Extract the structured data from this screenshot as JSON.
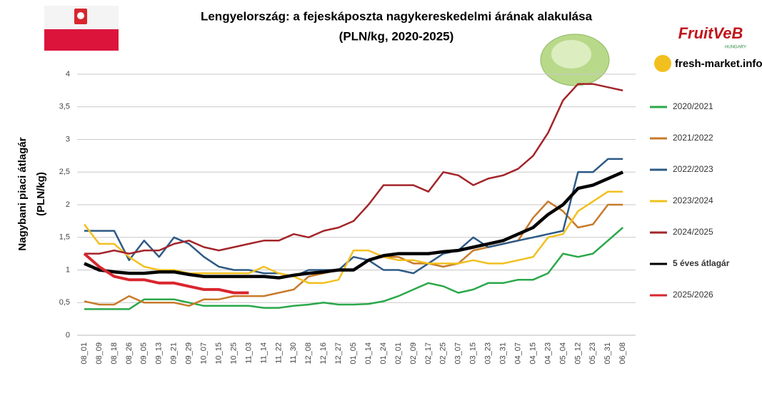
{
  "chart_data": {
    "type": "line",
    "title": "Lengyelország: a fejeskáposzta nagykereskedelmi árának alakulása",
    "subtitle": "(PLN/kg, 2020-2025)",
    "y_label": [
      "Nagybani piaci átlagár",
      "(PLN/kg)"
    ],
    "logos": {
      "fruitveb": "FruitVeB",
      "hungary": "HUNGARY",
      "freshmarket": "fresh-market.info"
    },
    "categories": [
      "08_01",
      "08_09",
      "08_18",
      "08_26",
      "09_05",
      "09_13",
      "09_21",
      "09_29",
      "10_07",
      "10_15",
      "10_25",
      "11_03",
      "11_14",
      "11_22",
      "11_30",
      "12_08",
      "12_16",
      "12_27",
      "01_05",
      "01_14",
      "01_24",
      "02_01",
      "02_09",
      "02_17",
      "02_25",
      "03_07",
      "03_15",
      "03_23",
      "03_31",
      "04_07",
      "04_15",
      "04_23",
      "05_04",
      "05_12",
      "05_23",
      "05_31",
      "06_08"
    ],
    "ylim": [
      0,
      4
    ],
    "yticks": [
      0,
      {
        "value": 0.5,
        "label": "0,5"
      },
      1,
      {
        "value": 1.5,
        "label": "1,5"
      },
      2,
      {
        "value": 2.5,
        "label": "2,5"
      },
      3,
      {
        "value": 3.5,
        "label": "3,5"
      },
      4
    ],
    "grid": true,
    "legend": "right",
    "series": [
      {
        "name": "2020/2021",
        "color": "#2aa84a",
        "width": 2.5,
        "values": [
          0.4,
          0.4,
          0.4,
          0.4,
          0.55,
          0.55,
          0.55,
          0.5,
          0.45,
          0.45,
          0.45,
          0.45,
          0.42,
          0.42,
          0.45,
          0.47,
          0.5,
          0.47,
          0.47,
          0.48,
          0.52,
          0.6,
          0.7,
          0.8,
          0.75,
          0.65,
          0.7,
          0.8,
          0.8,
          0.85,
          0.85,
          0.95,
          1.25,
          1.2,
          1.25,
          1.45,
          1.65
        ]
      },
      {
        "name": "2021/2022",
        "color": "#c87a2a",
        "width": 2.5,
        "values": [
          0.52,
          0.47,
          0.47,
          0.6,
          0.5,
          0.5,
          0.5,
          0.45,
          0.55,
          0.55,
          0.6,
          0.6,
          0.6,
          0.65,
          0.7,
          0.9,
          0.95,
          1.0,
          1.0,
          1.15,
          1.2,
          1.2,
          1.1,
          1.1,
          1.05,
          1.1,
          1.3,
          1.35,
          1.4,
          1.45,
          1.8,
          2.05,
          1.9,
          1.65,
          1.7,
          2.0,
          2.0
        ]
      },
      {
        "name": "2022/2023",
        "color": "#2e5a85",
        "width": 2.5,
        "values": [
          1.6,
          1.6,
          1.6,
          1.15,
          1.45,
          1.2,
          1.5,
          1.4,
          1.2,
          1.05,
          1.0,
          1.0,
          0.95,
          0.95,
          0.9,
          1.0,
          1.0,
          1.0,
          1.2,
          1.15,
          1.0,
          1.0,
          0.95,
          1.1,
          1.25,
          1.3,
          1.5,
          1.35,
          1.4,
          1.45,
          1.5,
          1.55,
          1.6,
          2.5,
          2.5,
          2.7,
          2.7
        ]
      },
      {
        "name": "2023/2024",
        "color": "#f2c01e",
        "width": 2.5,
        "values": [
          1.7,
          1.4,
          1.4,
          1.2,
          1.05,
          1.0,
          1.0,
          0.95,
          0.95,
          0.95,
          0.95,
          0.95,
          1.05,
          0.95,
          0.9,
          0.8,
          0.8,
          0.85,
          1.3,
          1.3,
          1.2,
          1.15,
          1.15,
          1.1,
          1.1,
          1.1,
          1.15,
          1.1,
          1.1,
          1.15,
          1.2,
          1.5,
          1.55,
          1.9,
          2.05,
          2.2,
          2.2
        ]
      },
      {
        "name": "2024/2025",
        "color": "#a3252a",
        "width": 2.5,
        "values": [
          1.25,
          1.25,
          1.3,
          1.25,
          1.3,
          1.3,
          1.4,
          1.45,
          1.35,
          1.3,
          1.35,
          1.4,
          1.45,
          1.45,
          1.55,
          1.5,
          1.6,
          1.65,
          1.75,
          2.0,
          2.3,
          2.3,
          2.3,
          2.2,
          2.5,
          2.45,
          2.3,
          2.4,
          2.45,
          2.55,
          2.75,
          3.1,
          3.6,
          3.85,
          3.85,
          3.8,
          3.75
        ]
      },
      {
        "name": "5 éves átlagár",
        "color": "#000000",
        "width": 4.5,
        "values": [
          1.1,
          1.0,
          0.97,
          0.95,
          0.95,
          0.97,
          0.97,
          0.93,
          0.9,
          0.9,
          0.9,
          0.9,
          0.9,
          0.88,
          0.92,
          0.95,
          0.97,
          1.0,
          1.0,
          1.15,
          1.22,
          1.25,
          1.25,
          1.25,
          1.28,
          1.3,
          1.35,
          1.4,
          1.45,
          1.55,
          1.65,
          1.85,
          2.0,
          2.25,
          2.3,
          2.4,
          2.5
        ]
      },
      {
        "name": "2025/2026",
        "color": "#d8262e",
        "width": 4,
        "values": [
          1.25,
          1.05,
          0.9,
          0.85,
          0.85,
          0.8,
          0.8,
          0.75,
          0.7,
          0.7,
          0.65,
          0.65,
          null,
          null,
          null,
          null,
          null,
          null,
          null,
          null,
          null,
          null,
          null,
          null,
          null,
          null,
          null,
          null,
          null,
          null,
          null,
          null,
          null,
          null,
          null,
          null,
          null
        ]
      }
    ]
  }
}
